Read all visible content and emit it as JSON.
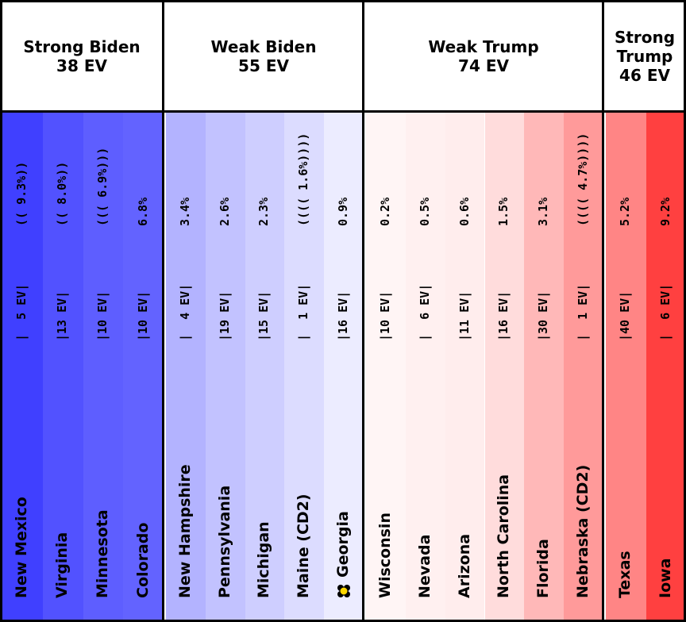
{
  "chart_data": {
    "type": "table",
    "groups": [
      {
        "title": "Strong Biden",
        "ev": "38 EV",
        "states": [
          {
            "name": "New Mexico",
            "ev_label": "|  5 EV|",
            "margin_label": "(( 9.3%))",
            "color": "#4040ff"
          },
          {
            "name": "Virginia",
            "ev_label": "|13 EV|",
            "margin_label": "(( 8.0%))",
            "color": "#5252ff"
          },
          {
            "name": "Minnesota",
            "ev_label": "|10 EV|",
            "margin_label": "((( 6.9%)))",
            "color": "#5e5eff"
          },
          {
            "name": "Colorado",
            "ev_label": "|10 EV|",
            "margin_label": "6.8%",
            "color": "#6363ff"
          }
        ]
      },
      {
        "title": "Weak Biden",
        "ev": "55 EV",
        "states": [
          {
            "name": "New Hampshire",
            "ev_label": "|  4 EV|",
            "margin_label": "3.4%",
            "color": "#b3b3ff"
          },
          {
            "name": "Pennsylvania",
            "ev_label": "|19 EV|",
            "margin_label": "2.6%",
            "color": "#c2c2ff"
          },
          {
            "name": "Michigan",
            "ev_label": "|15 EV|",
            "margin_label": "2.3%",
            "color": "#ceceff"
          },
          {
            "name": "Maine (CD2)",
            "ev_label": "|  1 EV|",
            "margin_label": "(((( 1.6%))))",
            "color": "#dcdcff"
          },
          {
            "name": "Georgia",
            "ev_label": "|16 EV|",
            "margin_label": "0.9%",
            "color": "#ececff",
            "star": true
          }
        ]
      },
      {
        "title": "Weak Trump",
        "ev": "74 EV",
        "states": [
          {
            "name": "Wisconsin",
            "ev_label": "|10 EV|",
            "margin_label": "0.2%",
            "color": "#fff5f5"
          },
          {
            "name": "Nevada",
            "ev_label": "|  6 EV|",
            "margin_label": "0.5%",
            "color": "#fff0f0"
          },
          {
            "name": "Arizona",
            "ev_label": "|11 EV|",
            "margin_label": "0.6%",
            "color": "#ffeded"
          },
          {
            "name": "North Carolina",
            "ev_label": "|16 EV|",
            "margin_label": "1.5%",
            "color": "#ffdcdc"
          },
          {
            "name": "Florida",
            "ev_label": "|30 EV|",
            "margin_label": "3.1%",
            "color": "#ffb8b8"
          },
          {
            "name": "Nebraska (CD2)",
            "ev_label": "|  1 EV|",
            "margin_label": "(((( 4.7%))))",
            "color": "#ff9a9a"
          }
        ]
      },
      {
        "title": "Strong Trump",
        "ev": "46 EV",
        "states": [
          {
            "name": "Texas",
            "ev_label": "|40 EV|",
            "margin_label": "5.2%",
            "color": "#ff8585"
          },
          {
            "name": "Iowa",
            "ev_label": "|  6 EV|",
            "margin_label": "9.2%",
            "color": "#ff4040"
          }
        ]
      }
    ]
  },
  "colors": {
    "border": "#000000",
    "marker": "#ffd700"
  }
}
